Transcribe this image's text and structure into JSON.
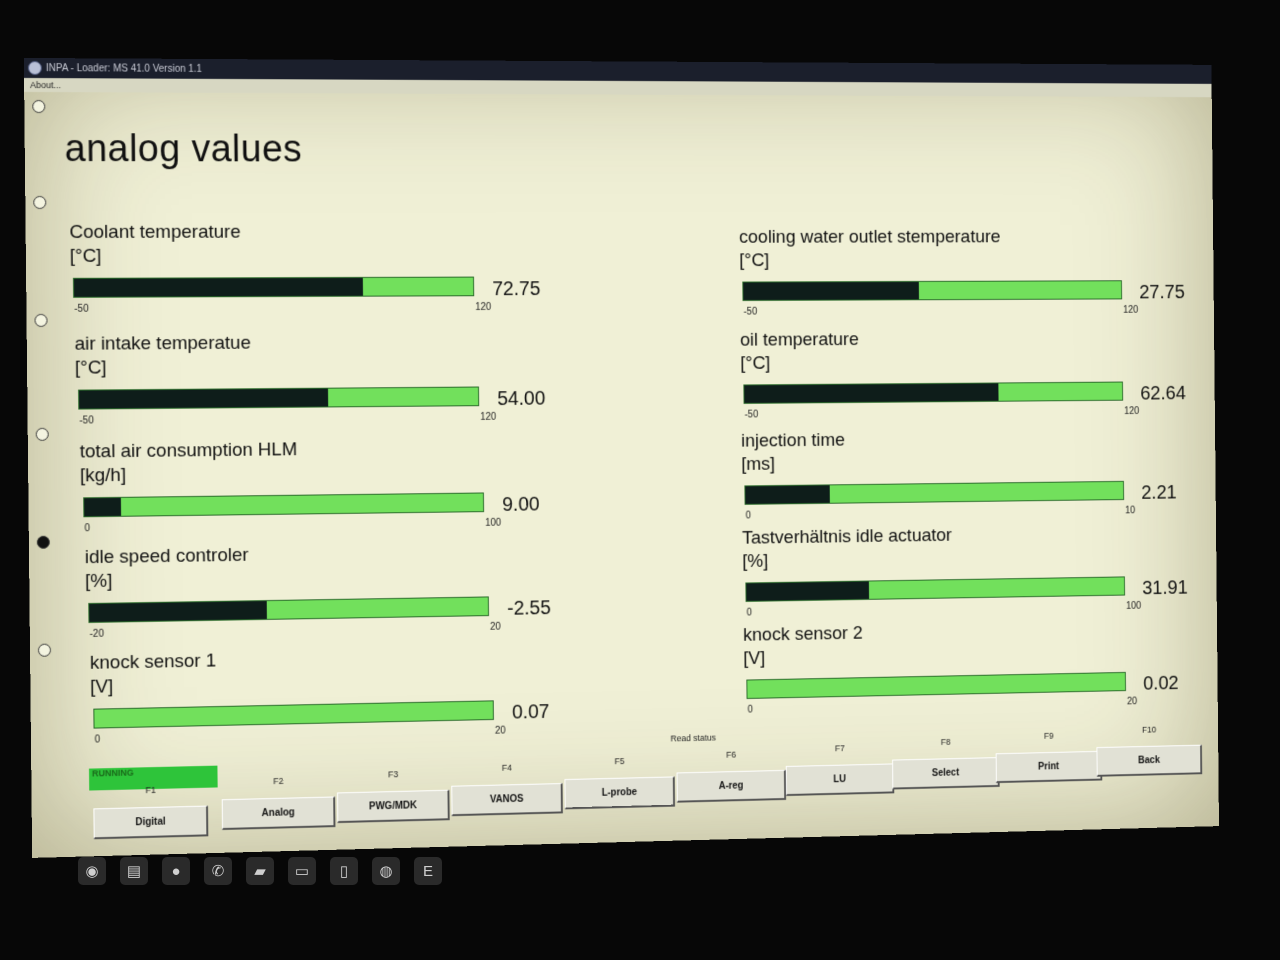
{
  "window": {
    "title": "INPA - Loader: MS 41.0 Version 1.1"
  },
  "menu": {
    "about": "About..."
  },
  "page_title": "analog values",
  "gauges": [
    {
      "label": "Coolant temperature",
      "unit": "[°C]",
      "min": "-50",
      "max": "120",
      "value": "72.75",
      "fraction": 0.72
    },
    {
      "label": "air intake temperatue",
      "unit": "[°C]",
      "min": "-50",
      "max": "120",
      "value": "54.00",
      "fraction": 0.62
    },
    {
      "label": "total air consumption HLM",
      "unit": "[kg/h]",
      "min": "0",
      "max": "100",
      "value": "9.00",
      "fraction": 0.09
    },
    {
      "label": "idle speed controler",
      "unit": "[%]",
      "min": "-20",
      "max": "20",
      "value": "-2.55",
      "fraction": 0.44
    },
    {
      "label": "knock sensor 1",
      "unit": "[V]",
      "min": "0",
      "max": "20",
      "value": "0.07",
      "fraction": 0.0
    },
    {
      "label": "cooling water outlet stemperature",
      "unit": "[°C]",
      "min": "-50",
      "max": "120",
      "value": "27.75",
      "fraction": 0.46
    },
    {
      "label": "oil temperature",
      "unit": "[°C]",
      "min": "-50",
      "max": "120",
      "value": "62.64",
      "fraction": 0.67
    },
    {
      "label": "injection time",
      "unit": "[ms]",
      "min": "0",
      "max": "10",
      "value": "2.21",
      "fraction": 0.22
    },
    {
      "label": "Tastverhältnis idle actuator",
      "unit": "[%]",
      "min": "0",
      "max": "100",
      "value": "31.91",
      "fraction": 0.32
    },
    {
      "label": "knock sensor 2",
      "unit": "[V]",
      "min": "0",
      "max": "20",
      "value": "0.02",
      "fraction": 0.0
    }
  ],
  "status": {
    "read_status": "Read status",
    "running": "RUNNING"
  },
  "fkeys": [
    {
      "key": "F1",
      "label": "Digital"
    },
    {
      "key": "F2",
      "label": "Analog"
    },
    {
      "key": "F3",
      "label": "PWG/MDK"
    },
    {
      "key": "F4",
      "label": "VANOS"
    },
    {
      "key": "F5",
      "label": "L-probe"
    },
    {
      "key": "F6",
      "label": "A-reg"
    },
    {
      "key": "F7",
      "label": "LU"
    },
    {
      "key": "F8",
      "label": "Select"
    },
    {
      "key": "F9",
      "label": "Print"
    },
    {
      "key": "F10",
      "label": "Back"
    }
  ],
  "taskbar": {
    "icons": [
      "start-icon",
      "folder-icon",
      "firefox-icon",
      "viber-icon",
      "sticky-notes-icon",
      "explorer-icon",
      "notepad-icon",
      "bmw-icon",
      "editor-icon"
    ]
  }
}
